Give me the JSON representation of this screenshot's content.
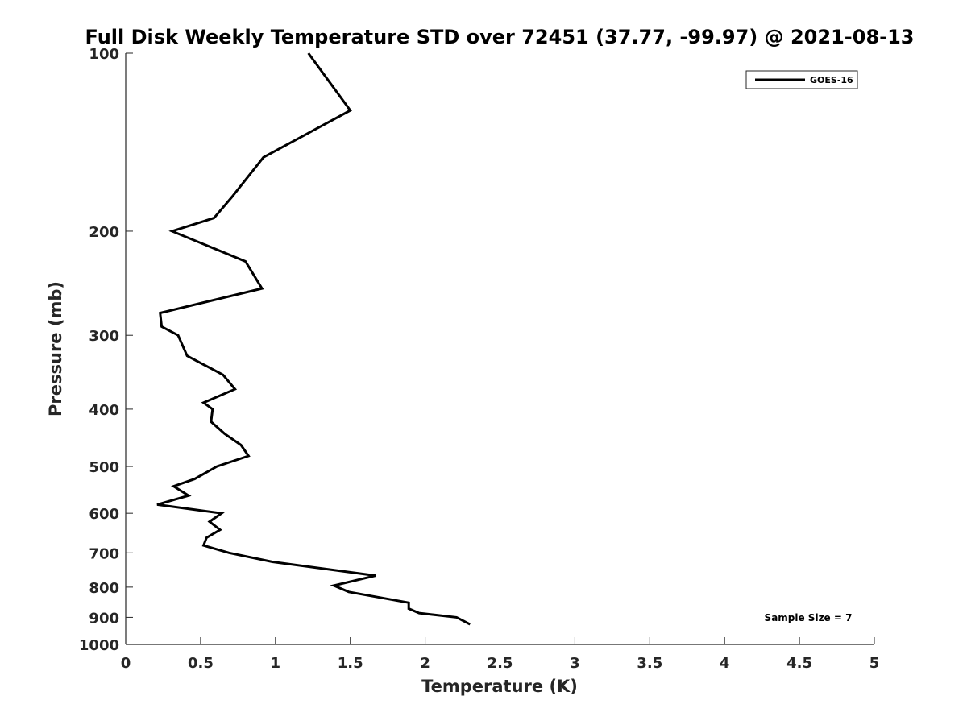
{
  "chart_data": {
    "type": "line",
    "title": "Full Disk Weekly Temperature STD over 72451 (37.77, -99.97) @ 2021-08-13",
    "xlabel": "Temperature (K)",
    "ylabel": "Pressure (mb)",
    "xlim": [
      0,
      5
    ],
    "ylim": [
      100,
      1000
    ],
    "yscale": "log",
    "y_reversed": true,
    "x_ticks": [
      "0",
      "0.5",
      "1",
      "1.5",
      "2",
      "2.5",
      "3",
      "3.5",
      "4",
      "4.5",
      "5"
    ],
    "y_ticks": [
      "100",
      "200",
      "300",
      "400",
      "500",
      "600",
      "700",
      "800",
      "900",
      "1000"
    ],
    "grid": false,
    "legend_position": "top-right",
    "annotation": "Sample Size = 7",
    "series": [
      {
        "name": "GOES-16",
        "color": "#000000",
        "points": [
          [
            1.22,
            100
          ],
          [
            1.5,
            125
          ],
          [
            0.92,
            150
          ],
          [
            0.71,
            175
          ],
          [
            0.59,
            190
          ],
          [
            0.31,
            200
          ],
          [
            0.8,
            225
          ],
          [
            0.91,
            250
          ],
          [
            0.23,
            275
          ],
          [
            0.24,
            290
          ],
          [
            0.35,
            300
          ],
          [
            0.41,
            325
          ],
          [
            0.65,
            350
          ],
          [
            0.73,
            370
          ],
          [
            0.52,
            390
          ],
          [
            0.58,
            400
          ],
          [
            0.57,
            420
          ],
          [
            0.66,
            440
          ],
          [
            0.77,
            460
          ],
          [
            0.82,
            480
          ],
          [
            0.61,
            500
          ],
          [
            0.46,
            525
          ],
          [
            0.32,
            540
          ],
          [
            0.42,
            560
          ],
          [
            0.21,
            580
          ],
          [
            0.64,
            600
          ],
          [
            0.56,
            620
          ],
          [
            0.63,
            640
          ],
          [
            0.54,
            660
          ],
          [
            0.52,
            680
          ],
          [
            0.69,
            700
          ],
          [
            0.98,
            725
          ],
          [
            1.67,
            765
          ],
          [
            1.39,
            795
          ],
          [
            1.49,
            815
          ],
          [
            1.89,
            850
          ],
          [
            1.89,
            870
          ],
          [
            1.96,
            885
          ],
          [
            2.21,
            900
          ],
          [
            2.3,
            925
          ]
        ]
      }
    ]
  }
}
